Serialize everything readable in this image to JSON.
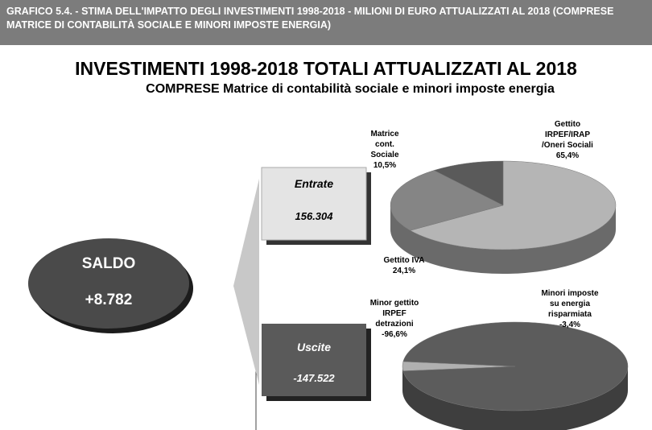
{
  "header": {
    "title": "GRAFICO 5.4. - STIMA DELL'IMPATTO DEGLI INVESTIMENTI 1998-2018 - MILIONI DI EURO ATTUALIZZATI AL 2018 (COMPRESE MATRICE DI CONTABILITÀ SOCIALE E MINORI IMPOSTE ENERGIA)"
  },
  "title": "INVESTIMENTI 1998-2018 TOTALI ATTUALIZZATI AL 2018",
  "subtitle": "COMPRESE Matrice di contabilità sociale e minori imposte energia",
  "saldo": {
    "label": "SALDO",
    "value": "+8.782"
  },
  "entrate": {
    "label": "Entrate",
    "value": "156.304"
  },
  "uscite": {
    "label": "Uscite",
    "value": "-147.522"
  },
  "chart_data": [
    {
      "type": "pie",
      "categories": [
        "Gettito IRPEF/IRAP /Oneri Sociali",
        "Gettito IVA",
        "Matrice cont. Sociale"
      ],
      "values": [
        65.4,
        24.1,
        10.5
      ],
      "value_labels": [
        "65,4%",
        "24,1%",
        "10,5%"
      ],
      "colors": [
        "#b5b5b5",
        "#858585",
        "#5a5a5a"
      ]
    },
    {
      "type": "pie",
      "categories": [
        "Minori imposte su energia risparmiata",
        "Minor gettito IRPEF detrazioni"
      ],
      "values": [
        -3.4,
        -96.6
      ],
      "value_labels": [
        "-3,4%",
        "-96,6%"
      ],
      "colors": [
        "#b0b0b0",
        "#5c5c5c"
      ]
    }
  ]
}
